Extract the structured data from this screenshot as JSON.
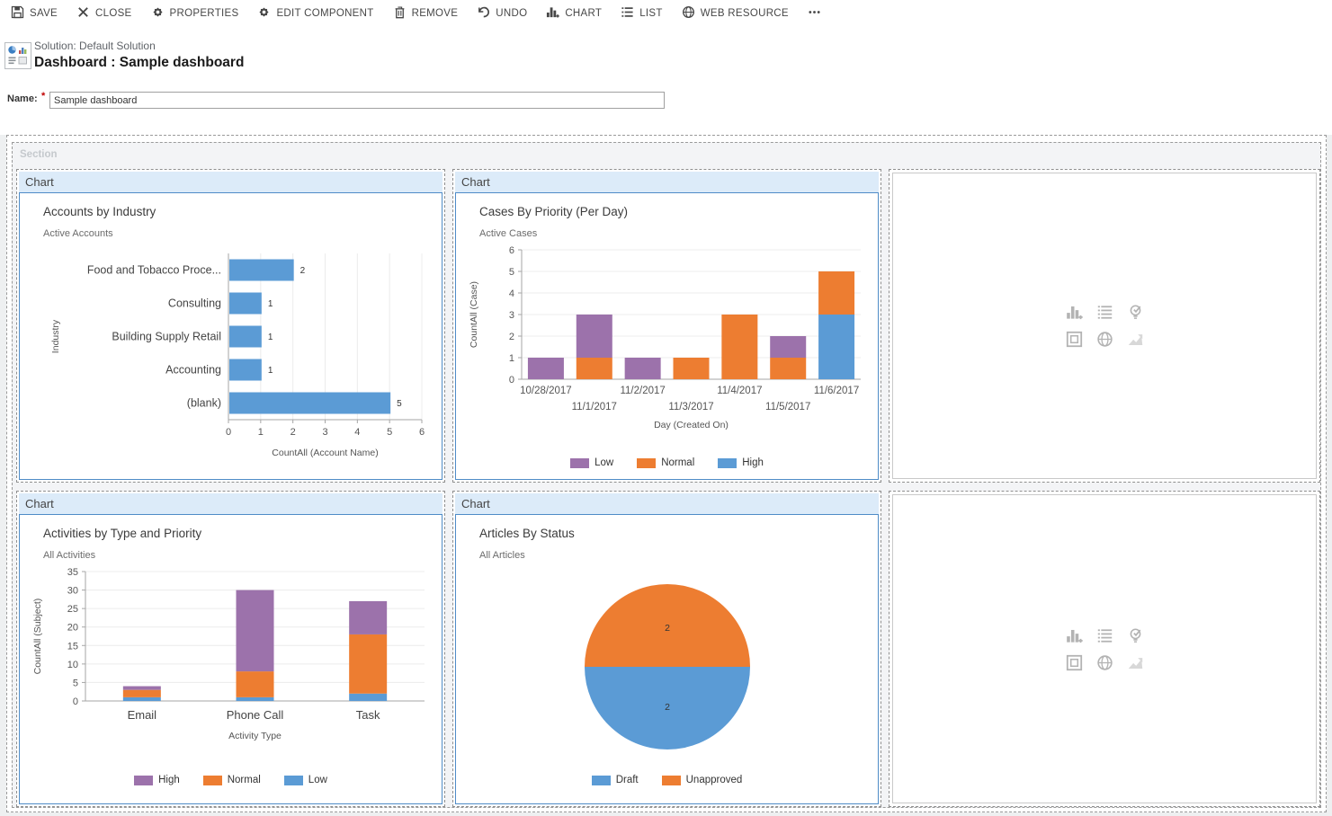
{
  "toolbar": {
    "items": [
      {
        "label": "SAVE",
        "icon": "save-icon"
      },
      {
        "label": "CLOSE",
        "icon": "close-icon"
      },
      {
        "label": "PROPERTIES",
        "icon": "gear-icon"
      },
      {
        "label": "EDIT COMPONENT",
        "icon": "gear-icon"
      },
      {
        "label": "REMOVE",
        "icon": "trash-icon"
      },
      {
        "label": "UNDO",
        "icon": "undo-icon"
      },
      {
        "label": "CHART",
        "icon": "chart-icon"
      },
      {
        "label": "LIST",
        "icon": "list-icon"
      },
      {
        "label": "WEB RESOURCE",
        "icon": "globe-icon"
      },
      {
        "label": "",
        "icon": "more-icon"
      }
    ]
  },
  "header": {
    "solution": "Solution: Default Solution",
    "title": "Dashboard : Sample dashboard"
  },
  "name_field": {
    "label": "Name:",
    "required_mark": "*",
    "value": "Sample dashboard"
  },
  "section": {
    "label": "Section",
    "panel_header_label": "Chart"
  },
  "empty_panel": {
    "icons": [
      "insert-chart-icon",
      "insert-list-icon",
      "insert-assistant-icon",
      "insert-iframe-icon",
      "insert-webresource-icon",
      "insert-image-icon"
    ]
  },
  "colors": {
    "blue": "#5B9BD5",
    "orange": "#ED7D31",
    "purple": "#9C72AB",
    "panel_header_bg": "#dcebf9",
    "panel_border": "#4f8cc7"
  },
  "chart_data": [
    {
      "type": "bar",
      "orientation": "horizontal",
      "title": "Accounts by Industry",
      "subtitle": "Active Accounts",
      "categories": [
        "Food and Tobacco Proce...",
        "Consulting",
        "Building Supply Retail",
        "Accounting",
        "(blank)"
      ],
      "values": [
        2,
        1,
        1,
        1,
        5
      ],
      "xlabel": "CountAll (Account Name)",
      "ylabel": "Industry",
      "xlim": [
        0,
        6
      ],
      "xticks": [
        0,
        1,
        2,
        3,
        4,
        5,
        6
      ],
      "color": "#5B9BD5",
      "grid": "vertical",
      "data_labels": true
    },
    {
      "type": "bar",
      "stacked": true,
      "orientation": "vertical",
      "title": "Cases By Priority (Per Day)",
      "subtitle": "Active Cases",
      "categories": [
        "10/28/2017",
        "11/1/2017",
        "11/2/2017",
        "11/3/2017",
        "11/4/2017",
        "11/5/2017",
        "11/6/2017"
      ],
      "series": [
        {
          "name": "High",
          "color": "#5B9BD5",
          "values": [
            0,
            0,
            0,
            0,
            0,
            0,
            3
          ]
        },
        {
          "name": "Normal",
          "color": "#ED7D31",
          "values": [
            0,
            1,
            0,
            1,
            3,
            1,
            2
          ]
        },
        {
          "name": "Low",
          "color": "#9C72AB",
          "values": [
            1,
            2,
            1,
            0,
            0,
            1,
            0
          ]
        }
      ],
      "legend": [
        "Low",
        "Normal",
        "High"
      ],
      "legend_position": "bottom",
      "xlabel": "Day (Created On)",
      "ylabel": "CountAll (Case)",
      "ylim": [
        0,
        6
      ],
      "ytick_step": 1,
      "stagger_x_labels": true,
      "grid": "horizontal"
    },
    {
      "type": "bar",
      "stacked": true,
      "orientation": "vertical",
      "title": "Activities by Type and Priority",
      "subtitle": "All Activities",
      "categories": [
        "Email",
        "Phone Call",
        "Task"
      ],
      "series": [
        {
          "name": "Low",
          "color": "#5B9BD5",
          "values": [
            1,
            1,
            2
          ]
        },
        {
          "name": "Normal",
          "color": "#ED7D31",
          "values": [
            2,
            7,
            16
          ]
        },
        {
          "name": "High",
          "color": "#9C72AB",
          "values": [
            1,
            22,
            9
          ]
        }
      ],
      "legend": [
        "High",
        "Normal",
        "Low"
      ],
      "legend_position": "bottom",
      "xlabel": "Activity Type",
      "ylabel": "CountAll (Subject)",
      "ylim": [
        0,
        35
      ],
      "ytick_step": 5,
      "stagger_x_labels": false,
      "grid": "horizontal"
    },
    {
      "type": "pie",
      "title": "Articles By Status",
      "subtitle": "All Articles",
      "slices": [
        {
          "label": "Unapproved",
          "value": 2,
          "color": "#ED7D31",
          "half": "top"
        },
        {
          "label": "Draft",
          "value": 2,
          "color": "#5B9BD5",
          "half": "bottom"
        }
      ],
      "legend": [
        "Draft",
        "Unapproved"
      ],
      "legend_position": "bottom",
      "data_labels": true
    }
  ]
}
